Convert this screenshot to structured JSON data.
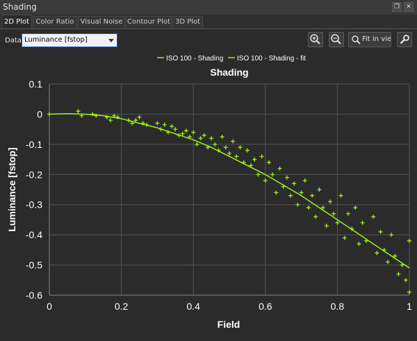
{
  "window": {
    "title": "Shading"
  },
  "tabs": [
    {
      "label": "2D Plot",
      "active": true
    },
    {
      "label": "Color Ratio",
      "active": false
    },
    {
      "label": "Visual Noise",
      "active": false
    },
    {
      "label": "Contour Plot",
      "active": false
    },
    {
      "label": "3D Plot",
      "active": false
    }
  ],
  "toolbar": {
    "data_label": "Data",
    "data_select": "Luminance [fstop]",
    "fit_label": "Fit in view",
    "icons": [
      "zoom-in-icon",
      "zoom-out-icon",
      "fit-in-view-icon",
      "settings-wrench-icon"
    ]
  },
  "colors": {
    "series": "#9ef01a",
    "background": "#2b2b2b",
    "grid": "#555555",
    "text": "#ffffff"
  },
  "chart_data": {
    "type": "scatter",
    "title": "Shading",
    "xlabel": "Field",
    "ylabel": "Luminance [fstop]",
    "xlim": [
      0,
      1
    ],
    "ylim": [
      -0.6,
      0.1
    ],
    "xticks": [
      "0",
      "0.2",
      "0.4",
      "0.6",
      "0.8",
      "1"
    ],
    "yticks": [
      "0.1",
      "0",
      "-0.1",
      "-0.2",
      "-0.3",
      "-0.4",
      "-0.5",
      "-0.6"
    ],
    "grid": true,
    "legend": "top-center",
    "series": [
      {
        "name": "ISO 100 - Shading",
        "marker": "plus",
        "points": [
          [
            0.0,
            0.0
          ],
          [
            0.08,
            0.01
          ],
          [
            0.09,
            -0.005
          ],
          [
            0.12,
            0.0
          ],
          [
            0.13,
            -0.005
          ],
          [
            0.16,
            -0.01
          ],
          [
            0.17,
            -0.02
          ],
          [
            0.18,
            -0.005
          ],
          [
            0.19,
            -0.01
          ],
          [
            0.22,
            -0.02
          ],
          [
            0.23,
            -0.03
          ],
          [
            0.24,
            -0.02
          ],
          [
            0.25,
            -0.01
          ],
          [
            0.26,
            -0.03
          ],
          [
            0.27,
            -0.035
          ],
          [
            0.3,
            -0.03
          ],
          [
            0.31,
            -0.05
          ],
          [
            0.32,
            -0.035
          ],
          [
            0.33,
            -0.06
          ],
          [
            0.34,
            -0.04
          ],
          [
            0.35,
            -0.05
          ],
          [
            0.36,
            -0.07
          ],
          [
            0.37,
            -0.065
          ],
          [
            0.38,
            -0.055
          ],
          [
            0.39,
            -0.075
          ],
          [
            0.4,
            -0.06
          ],
          [
            0.41,
            -0.1
          ],
          [
            0.42,
            -0.08
          ],
          [
            0.43,
            -0.07
          ],
          [
            0.44,
            -0.11
          ],
          [
            0.45,
            -0.08
          ],
          [
            0.46,
            -0.1
          ],
          [
            0.47,
            -0.12
          ],
          [
            0.48,
            -0.075
          ],
          [
            0.49,
            -0.11
          ],
          [
            0.5,
            -0.13
          ],
          [
            0.51,
            -0.09
          ],
          [
            0.52,
            -0.14
          ],
          [
            0.53,
            -0.11
          ],
          [
            0.54,
            -0.16
          ],
          [
            0.55,
            -0.12
          ],
          [
            0.56,
            -0.17
          ],
          [
            0.57,
            -0.15
          ],
          [
            0.58,
            -0.2
          ],
          [
            0.59,
            -0.14
          ],
          [
            0.6,
            -0.22
          ],
          [
            0.61,
            -0.16
          ],
          [
            0.62,
            -0.2
          ],
          [
            0.63,
            -0.26
          ],
          [
            0.64,
            -0.18
          ],
          [
            0.65,
            -0.24
          ],
          [
            0.66,
            -0.21
          ],
          [
            0.67,
            -0.27
          ],
          [
            0.68,
            -0.23
          ],
          [
            0.69,
            -0.3
          ],
          [
            0.7,
            -0.26
          ],
          [
            0.71,
            -0.22
          ],
          [
            0.72,
            -0.31
          ],
          [
            0.73,
            -0.27
          ],
          [
            0.74,
            -0.34
          ],
          [
            0.75,
            -0.25
          ],
          [
            0.76,
            -0.31
          ],
          [
            0.77,
            -0.37
          ],
          [
            0.78,
            -0.29
          ],
          [
            0.79,
            -0.33
          ],
          [
            0.8,
            -0.36
          ],
          [
            0.81,
            -0.27
          ],
          [
            0.82,
            -0.41
          ],
          [
            0.83,
            -0.33
          ],
          [
            0.84,
            -0.38
          ],
          [
            0.85,
            -0.31
          ],
          [
            0.86,
            -0.43
          ],
          [
            0.87,
            -0.36
          ],
          [
            0.88,
            -0.42
          ],
          [
            0.9,
            -0.34
          ],
          [
            0.91,
            -0.46
          ],
          [
            0.92,
            -0.39
          ],
          [
            0.93,
            -0.45
          ],
          [
            0.94,
            -0.49
          ],
          [
            0.95,
            -0.4
          ],
          [
            0.96,
            -0.47
          ],
          [
            0.97,
            -0.53
          ],
          [
            0.98,
            -0.5
          ],
          [
            0.99,
            -0.55
          ],
          [
            1.0,
            -0.42
          ],
          [
            1.0,
            -0.59
          ]
        ]
      },
      {
        "name": "ISO 100 - Shading - fit",
        "marker": "line",
        "points": [
          [
            0.0,
            0.0
          ],
          [
            0.05,
            0.002
          ],
          [
            0.1,
            0.0
          ],
          [
            0.15,
            -0.005
          ],
          [
            0.2,
            -0.015
          ],
          [
            0.25,
            -0.03
          ],
          [
            0.3,
            -0.045
          ],
          [
            0.35,
            -0.065
          ],
          [
            0.4,
            -0.085
          ],
          [
            0.45,
            -0.11
          ],
          [
            0.5,
            -0.14
          ],
          [
            0.55,
            -0.17
          ],
          [
            0.6,
            -0.2
          ],
          [
            0.65,
            -0.235
          ],
          [
            0.7,
            -0.27
          ],
          [
            0.75,
            -0.31
          ],
          [
            0.8,
            -0.35
          ],
          [
            0.85,
            -0.39
          ],
          [
            0.9,
            -0.43
          ],
          [
            0.95,
            -0.47
          ],
          [
            1.0,
            -0.51
          ]
        ]
      }
    ]
  }
}
